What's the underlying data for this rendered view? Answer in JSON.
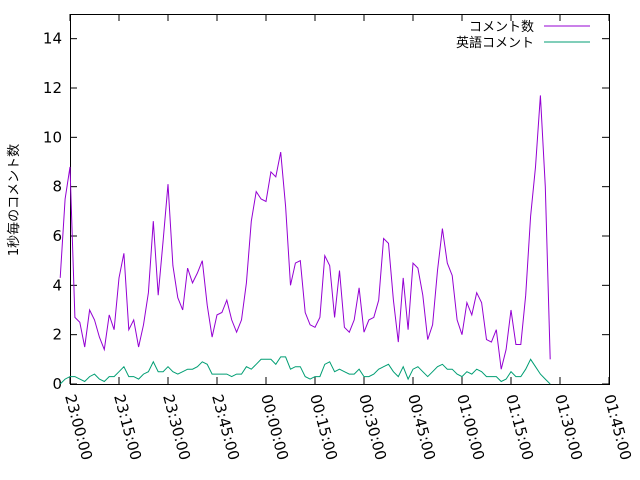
{
  "chart_data": {
    "type": "line",
    "ylabel": "1秒毎のコメント数",
    "xlabel": "",
    "ylim": [
      0,
      15
    ],
    "yticks": [
      0,
      2,
      4,
      6,
      8,
      10,
      12,
      14
    ],
    "xlim": [
      "23:00:00",
      "01:45:00"
    ],
    "xticks": [
      "23:00:00",
      "23:15:00",
      "23:30:00",
      "23:45:00",
      "00:00:00",
      "00:15:00",
      "00:30:00",
      "00:45:00",
      "01:00:00",
      "01:15:00",
      "01:30:00",
      "01:45:00"
    ],
    "grid": false,
    "legend_position": "top-right",
    "series": [
      {
        "name": "コメント数",
        "color": "#9400d3",
        "points": [
          [
            "22:57:00",
            4.3
          ],
          [
            "22:58:30",
            7.5
          ],
          [
            "23:00:00",
            8.8
          ],
          [
            "23:01:30",
            2.7
          ],
          [
            "23:03:00",
            2.5
          ],
          [
            "23:04:30",
            1.5
          ],
          [
            "23:06:00",
            3.0
          ],
          [
            "23:07:30",
            2.6
          ],
          [
            "23:09:00",
            1.9
          ],
          [
            "23:10:30",
            1.4
          ],
          [
            "23:12:00",
            2.8
          ],
          [
            "23:13:30",
            2.2
          ],
          [
            "23:15:00",
            4.3
          ],
          [
            "23:16:30",
            5.3
          ],
          [
            "23:18:00",
            2.2
          ],
          [
            "23:19:30",
            2.6
          ],
          [
            "23:21:00",
            1.5
          ],
          [
            "23:22:30",
            2.4
          ],
          [
            "23:24:00",
            3.7
          ],
          [
            "23:25:30",
            6.6
          ],
          [
            "23:27:00",
            3.6
          ],
          [
            "23:28:30",
            5.8
          ],
          [
            "23:30:00",
            8.1
          ],
          [
            "23:31:30",
            4.8
          ],
          [
            "23:33:00",
            3.5
          ],
          [
            "23:34:30",
            3.0
          ],
          [
            "23:36:00",
            4.7
          ],
          [
            "23:37:30",
            4.1
          ],
          [
            "23:39:00",
            4.5
          ],
          [
            "23:40:30",
            5.0
          ],
          [
            "23:42:00",
            3.2
          ],
          [
            "23:43:30",
            1.9
          ],
          [
            "23:45:00",
            2.8
          ],
          [
            "23:46:30",
            2.9
          ],
          [
            "23:48:00",
            3.4
          ],
          [
            "23:49:30",
            2.6
          ],
          [
            "23:51:00",
            2.1
          ],
          [
            "23:52:30",
            2.6
          ],
          [
            "23:54:00",
            4.1
          ],
          [
            "23:55:30",
            6.6
          ],
          [
            "23:57:00",
            7.8
          ],
          [
            "23:58:30",
            7.5
          ],
          [
            "00:00:00",
            7.4
          ],
          [
            "00:01:30",
            8.6
          ],
          [
            "00:03:00",
            8.4
          ],
          [
            "00:04:30",
            9.4
          ],
          [
            "00:06:00",
            7.2
          ],
          [
            "00:07:30",
            4.0
          ],
          [
            "00:09:00",
            4.9
          ],
          [
            "00:10:30",
            5.0
          ],
          [
            "00:12:00",
            2.9
          ],
          [
            "00:13:30",
            2.4
          ],
          [
            "00:15:00",
            2.3
          ],
          [
            "00:16:30",
            2.7
          ],
          [
            "00:18:00",
            5.2
          ],
          [
            "00:19:30",
            4.8
          ],
          [
            "00:21:00",
            2.7
          ],
          [
            "00:22:30",
            4.6
          ],
          [
            "00:24:00",
            2.3
          ],
          [
            "00:25:30",
            2.1
          ],
          [
            "00:27:00",
            2.6
          ],
          [
            "00:28:30",
            3.9
          ],
          [
            "00:30:00",
            2.1
          ],
          [
            "00:31:30",
            2.6
          ],
          [
            "00:33:00",
            2.7
          ],
          [
            "00:34:30",
            3.4
          ],
          [
            "00:36:00",
            5.9
          ],
          [
            "00:37:30",
            5.7
          ],
          [
            "00:39:00",
            3.4
          ],
          [
            "00:40:30",
            1.7
          ],
          [
            "00:42:00",
            4.3
          ],
          [
            "00:43:30",
            2.2
          ],
          [
            "00:45:00",
            4.9
          ],
          [
            "00:46:30",
            4.7
          ],
          [
            "00:48:00",
            3.6
          ],
          [
            "00:49:30",
            1.8
          ],
          [
            "00:51:00",
            2.4
          ],
          [
            "00:52:30",
            4.6
          ],
          [
            "00:54:00",
            6.3
          ],
          [
            "00:55:30",
            4.9
          ],
          [
            "00:57:00",
            4.4
          ],
          [
            "00:58:30",
            2.6
          ],
          [
            "01:00:00",
            2.0
          ],
          [
            "01:01:30",
            3.3
          ],
          [
            "01:03:00",
            2.8
          ],
          [
            "01:04:30",
            3.7
          ],
          [
            "01:06:00",
            3.3
          ],
          [
            "01:07:30",
            1.8
          ],
          [
            "01:09:00",
            1.7
          ],
          [
            "01:10:30",
            2.2
          ],
          [
            "01:12:00",
            0.6
          ],
          [
            "01:13:30",
            1.4
          ],
          [
            "01:15:00",
            3.0
          ],
          [
            "01:16:30",
            1.6
          ],
          [
            "01:18:00",
            1.6
          ],
          [
            "01:19:30",
            3.6
          ],
          [
            "01:21:00",
            6.8
          ],
          [
            "01:22:30",
            8.8
          ],
          [
            "01:24:00",
            11.7
          ],
          [
            "01:25:30",
            8.0
          ],
          [
            "01:27:00",
            1.0
          ]
        ]
      },
      {
        "name": "英語コメント",
        "color": "#009e73",
        "points": [
          [
            "22:57:00",
            0.0
          ],
          [
            "22:58:30",
            0.2
          ],
          [
            "23:00:00",
            0.3
          ],
          [
            "23:01:30",
            0.3
          ],
          [
            "23:03:00",
            0.2
          ],
          [
            "23:04:30",
            0.1
          ],
          [
            "23:06:00",
            0.3
          ],
          [
            "23:07:30",
            0.4
          ],
          [
            "23:09:00",
            0.2
          ],
          [
            "23:10:30",
            0.1
          ],
          [
            "23:12:00",
            0.3
          ],
          [
            "23:13:30",
            0.3
          ],
          [
            "23:15:00",
            0.5
          ],
          [
            "23:16:30",
            0.7
          ],
          [
            "23:18:00",
            0.3
          ],
          [
            "23:19:30",
            0.3
          ],
          [
            "23:21:00",
            0.2
          ],
          [
            "23:22:30",
            0.4
          ],
          [
            "23:24:00",
            0.5
          ],
          [
            "23:25:30",
            0.9
          ],
          [
            "23:27:00",
            0.5
          ],
          [
            "23:28:30",
            0.5
          ],
          [
            "23:30:00",
            0.7
          ],
          [
            "23:31:30",
            0.5
          ],
          [
            "23:33:00",
            0.4
          ],
          [
            "23:34:30",
            0.5
          ],
          [
            "23:36:00",
            0.6
          ],
          [
            "23:37:30",
            0.6
          ],
          [
            "23:39:00",
            0.7
          ],
          [
            "23:40:30",
            0.9
          ],
          [
            "23:42:00",
            0.8
          ],
          [
            "23:43:30",
            0.4
          ],
          [
            "23:45:00",
            0.4
          ],
          [
            "23:46:30",
            0.4
          ],
          [
            "23:48:00",
            0.4
          ],
          [
            "23:49:30",
            0.3
          ],
          [
            "23:51:00",
            0.4
          ],
          [
            "23:52:30",
            0.4
          ],
          [
            "23:54:00",
            0.7
          ],
          [
            "23:55:30",
            0.6
          ],
          [
            "23:57:00",
            0.8
          ],
          [
            "23:58:30",
            1.0
          ],
          [
            "00:00:00",
            1.0
          ],
          [
            "00:01:30",
            1.0
          ],
          [
            "00:03:00",
            0.8
          ],
          [
            "00:04:30",
            1.1
          ],
          [
            "00:06:00",
            1.1
          ],
          [
            "00:07:30",
            0.6
          ],
          [
            "00:09:00",
            0.7
          ],
          [
            "00:10:30",
            0.7
          ],
          [
            "00:12:00",
            0.3
          ],
          [
            "00:13:30",
            0.2
          ],
          [
            "00:15:00",
            0.3
          ],
          [
            "00:16:30",
            0.3
          ],
          [
            "00:18:00",
            0.8
          ],
          [
            "00:19:30",
            0.9
          ],
          [
            "00:21:00",
            0.5
          ],
          [
            "00:22:30",
            0.6
          ],
          [
            "00:24:00",
            0.5
          ],
          [
            "00:25:30",
            0.4
          ],
          [
            "00:27:00",
            0.4
          ],
          [
            "00:28:30",
            0.6
          ],
          [
            "00:30:00",
            0.3
          ],
          [
            "00:31:30",
            0.3
          ],
          [
            "00:33:00",
            0.4
          ],
          [
            "00:34:30",
            0.6
          ],
          [
            "00:36:00",
            0.7
          ],
          [
            "00:37:30",
            0.8
          ],
          [
            "00:39:00",
            0.5
          ],
          [
            "00:40:30",
            0.3
          ],
          [
            "00:42:00",
            0.7
          ],
          [
            "00:43:30",
            0.2
          ],
          [
            "00:45:00",
            0.6
          ],
          [
            "00:46:30",
            0.7
          ],
          [
            "00:48:00",
            0.5
          ],
          [
            "00:49:30",
            0.3
          ],
          [
            "00:51:00",
            0.5
          ],
          [
            "00:52:30",
            0.7
          ],
          [
            "00:54:00",
            0.8
          ],
          [
            "00:55:30",
            0.6
          ],
          [
            "00:57:00",
            0.6
          ],
          [
            "00:58:30",
            0.4
          ],
          [
            "01:00:00",
            0.3
          ],
          [
            "01:01:30",
            0.5
          ],
          [
            "01:03:00",
            0.4
          ],
          [
            "01:04:30",
            0.6
          ],
          [
            "01:06:00",
            0.5
          ],
          [
            "01:07:30",
            0.3
          ],
          [
            "01:09:00",
            0.3
          ],
          [
            "01:10:30",
            0.3
          ],
          [
            "01:12:00",
            0.1
          ],
          [
            "01:13:30",
            0.2
          ],
          [
            "01:15:00",
            0.5
          ],
          [
            "01:16:30",
            0.3
          ],
          [
            "01:18:00",
            0.3
          ],
          [
            "01:19:30",
            0.6
          ],
          [
            "01:21:00",
            1.0
          ],
          [
            "01:22:30",
            0.7
          ],
          [
            "01:24:00",
            0.4
          ],
          [
            "01:25:30",
            0.2
          ],
          [
            "01:27:00",
            0.0
          ]
        ]
      }
    ]
  }
}
